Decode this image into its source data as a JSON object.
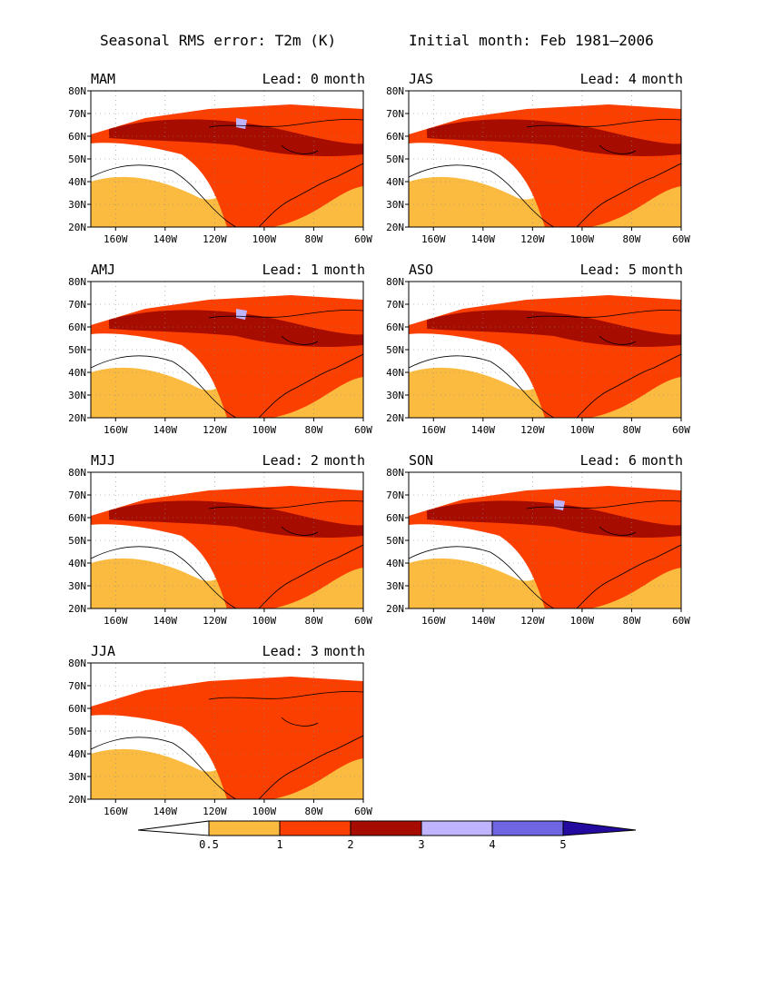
{
  "figure": {
    "title_left": "Seasonal RMS error: T2m (K)",
    "title_right": "Initial month: Feb 1981–2006",
    "lead_label": "Lead:",
    "lead_unit": "month"
  },
  "map": {
    "lat_range": [
      20,
      80
    ],
    "lon_range": [
      -170,
      -60
    ],
    "lat_ticks": [
      "20N",
      "30N",
      "40N",
      "50N",
      "60N",
      "70N",
      "80N"
    ],
    "lon_ticks": [
      "160W",
      "140W",
      "120W",
      "100W",
      "80W",
      "60W"
    ],
    "grid": "dotted"
  },
  "panels": [
    {
      "season": "MAM",
      "lead": "0",
      "dominant_levels": [
        "1-2",
        "2-3",
        "0.5-1",
        "3-4"
      ]
    },
    {
      "season": "AMJ",
      "lead": "1",
      "dominant_levels": [
        "1-2",
        "2-3",
        "0.5-1",
        "3-4"
      ]
    },
    {
      "season": "MJJ",
      "lead": "2",
      "dominant_levels": [
        "0.5-1",
        "1-2",
        "2-3"
      ]
    },
    {
      "season": "JJA",
      "lead": "3",
      "dominant_levels": [
        "0.5-1",
        "1-2"
      ]
    },
    {
      "season": "JAS",
      "lead": "4",
      "dominant_levels": [
        "0.5-1",
        "1-2",
        "2-3"
      ]
    },
    {
      "season": "ASO",
      "lead": "5",
      "dominant_levels": [
        "1-2",
        "2-3",
        "0.5-1"
      ]
    },
    {
      "season": "SON",
      "lead": "6",
      "dominant_levels": [
        "1-2",
        "2-3",
        "0.5-1",
        "3-4"
      ]
    }
  ],
  "colorbar": {
    "levels": [
      "0.5",
      "1",
      "2",
      "3",
      "4",
      "5"
    ],
    "colors": [
      "#ffffff",
      "#fbbb40",
      "#fb3f00",
      "#a70c00",
      "#c0b4ff",
      "#6f64e2",
      "#250aa0"
    ]
  }
}
